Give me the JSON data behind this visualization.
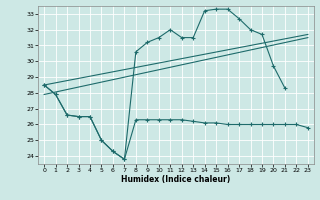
{
  "title": "",
  "xlabel": "Humidex (Indice chaleur)",
  "background_color": "#cde8e5",
  "grid_color": "#ffffff",
  "line_color": "#1e6b6b",
  "xlim": [
    -0.5,
    23.5
  ],
  "ylim": [
    23.5,
    33.5
  ],
  "xticks": [
    0,
    1,
    2,
    3,
    4,
    5,
    6,
    7,
    8,
    9,
    10,
    11,
    12,
    13,
    14,
    15,
    16,
    17,
    18,
    19,
    20,
    21,
    22,
    23
  ],
  "yticks": [
    24,
    25,
    26,
    27,
    28,
    29,
    30,
    31,
    32,
    33
  ],
  "series1_x": [
    0,
    1,
    2,
    3,
    4,
    5,
    6,
    7,
    8,
    9,
    10,
    11,
    12,
    13,
    14,
    15,
    16,
    17,
    18,
    19,
    20,
    21,
    22,
    23
  ],
  "series1_y": [
    28.5,
    27.9,
    26.6,
    26.5,
    26.5,
    25.0,
    24.3,
    23.8,
    26.3,
    26.3,
    26.3,
    26.3,
    26.3,
    26.2,
    26.1,
    26.1,
    26.0,
    26.0,
    26.0,
    26.0,
    26.0,
    26.0,
    26.0,
    25.8
  ],
  "series2_x": [
    0,
    1,
    2,
    3,
    4,
    5,
    6,
    7,
    8,
    9,
    10,
    11,
    12,
    13,
    14,
    15,
    16,
    17,
    18,
    19,
    20,
    21
  ],
  "series2_y": [
    28.5,
    27.9,
    26.6,
    26.5,
    26.5,
    25.0,
    24.3,
    23.8,
    30.6,
    31.2,
    31.5,
    32.0,
    31.5,
    31.5,
    33.2,
    33.3,
    33.3,
    32.7,
    32.0,
    31.7,
    29.7,
    28.3
  ],
  "series3_x": [
    0,
    23
  ],
  "series3_y": [
    28.5,
    31.7
  ],
  "series4_x": [
    0,
    23
  ],
  "series4_y": [
    27.9,
    31.5
  ]
}
